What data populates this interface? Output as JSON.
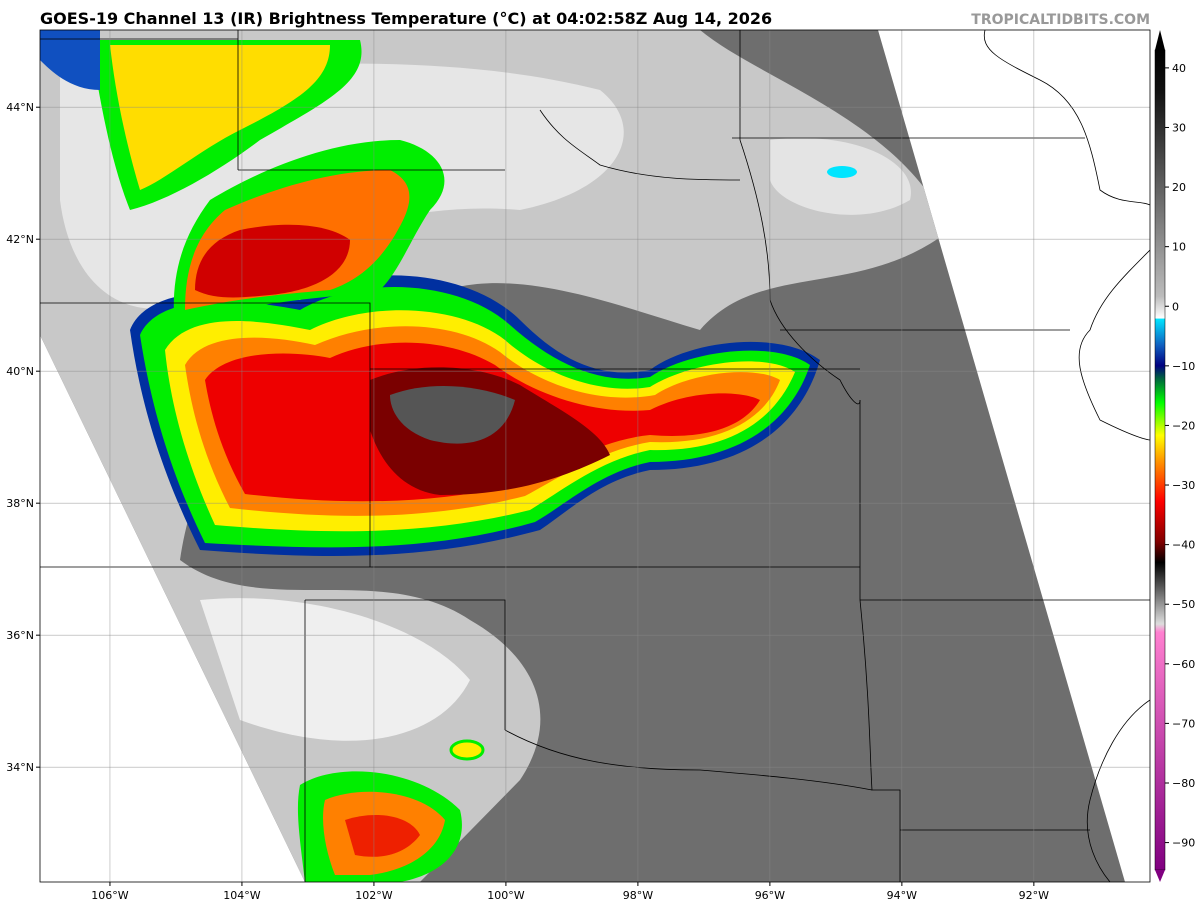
{
  "header": {
    "title": "GOES-19 Channel 13 (IR) Brightness Temperature (°C) at 04:02:58Z Aug 14, 2026",
    "credit": "TROPICALTIDBITS.COM"
  },
  "map": {
    "lonlim": [
      -107.06,
      -90.24
    ],
    "latlim": [
      32.26,
      45.17
    ],
    "lon_ticks": [
      {
        "value": -106,
        "label": "106°W"
      },
      {
        "value": -104,
        "label": "104°W"
      },
      {
        "value": -102,
        "label": "102°W"
      },
      {
        "value": -100,
        "label": "100°W"
      },
      {
        "value": -98,
        "label": "98°W"
      },
      {
        "value": -96,
        "label": "96°W"
      },
      {
        "value": -94,
        "label": "94°W"
      },
      {
        "value": -92,
        "label": "92°W"
      }
    ],
    "lat_ticks": [
      {
        "value": 44,
        "label": "44°N"
      },
      {
        "value": 42,
        "label": "42°N"
      },
      {
        "value": 40,
        "label": "40°N"
      },
      {
        "value": 38,
        "label": "38°N"
      },
      {
        "value": 36,
        "label": "36°N"
      },
      {
        "value": 34,
        "label": "34°N"
      }
    ],
    "grid": true
  },
  "colorbar": {
    "lim": [
      -94.6,
      43
    ],
    "ticks": [
      40,
      30,
      20,
      10,
      0,
      {
        "value": -10,
        "label": "−10"
      },
      {
        "value": -20,
        "label": "−20"
      },
      {
        "value": -30,
        "label": "−30"
      },
      {
        "value": -40,
        "label": "−40"
      },
      {
        "value": -50,
        "label": "−50"
      },
      {
        "value": -60,
        "label": "−60"
      },
      {
        "value": -70,
        "label": "−70"
      },
      {
        "value": -80,
        "label": "−80"
      },
      {
        "value": -90,
        "label": "−90"
      }
    ]
  }
}
